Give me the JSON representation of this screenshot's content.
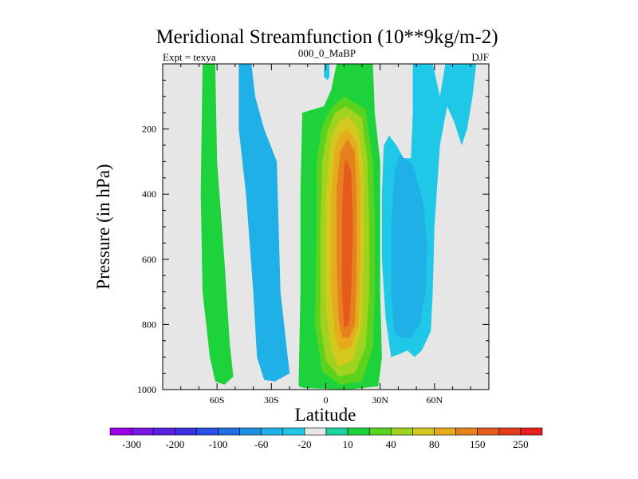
{
  "chart_data": {
    "type": "contour",
    "title": "Meridional Streamfunction (10**9kg/m-2)",
    "left_label": "Expt = texya",
    "center_label": "000_0_MaBP",
    "right_label": "DJF",
    "xlabel": "Latitude",
    "ylabel": "Pressure (in hPa)",
    "xlim": [
      -90,
      90
    ],
    "ylim": [
      1000,
      0
    ],
    "y_reversed": true,
    "xticks": [
      {
        "value": -60,
        "label": "60S"
      },
      {
        "value": -30,
        "label": "30S"
      },
      {
        "value": 0,
        "label": "0"
      },
      {
        "value": 30,
        "label": "30N"
      },
      {
        "value": 60,
        "label": "60N"
      }
    ],
    "yticks": [
      {
        "value": 200,
        "label": "200"
      },
      {
        "value": 400,
        "label": "400"
      },
      {
        "value": 600,
        "label": "600"
      },
      {
        "value": 800,
        "label": "800"
      },
      {
        "value": 1000,
        "label": "1000"
      }
    ],
    "colorbar": {
      "colors": [
        "#9b00e6",
        "#7a17e6",
        "#5a1fe0",
        "#3a2fe0",
        "#2a4fe6",
        "#1e6fe6",
        "#1e8fe6",
        "#1eb0e6",
        "#1ec8e6",
        "#e6e6e6",
        "#1ed2a0",
        "#1ed23c",
        "#5ad21e",
        "#a0d21e",
        "#d2c81e",
        "#e6aa1e",
        "#e6821e",
        "#e65a1e",
        "#e63c1e",
        "#e61e1e"
      ],
      "boundary_labels": [
        {
          "after": 1,
          "label": "-300"
        },
        {
          "after": 3,
          "label": "-200"
        },
        {
          "after": 5,
          "label": "-100"
        },
        {
          "after": 7,
          "label": "-60"
        },
        {
          "after": 9,
          "label": "-20"
        },
        {
          "after": 11,
          "label": "10"
        },
        {
          "after": 13,
          "label": "40"
        },
        {
          "after": 15,
          "label": "80"
        },
        {
          "after": 17,
          "label": "150"
        },
        {
          "after": 19,
          "label": "250"
        }
      ]
    },
    "background_color": "#e6e6e6",
    "cells": [
      {
        "name": "cell-left-positive",
        "color": "#1ed23c",
        "points": [
          [
            -68,
            0
          ],
          [
            -61,
            0
          ],
          [
            -60,
            300
          ],
          [
            -56,
            600
          ],
          [
            -53,
            860
          ],
          [
            -51,
            960
          ],
          [
            -56,
            985
          ],
          [
            -61,
            975
          ],
          [
            -64,
            900
          ],
          [
            -68,
            700
          ],
          [
            -69,
            400
          ]
        ]
      },
      {
        "name": "cell-left-negative",
        "color": "#1eb0e6",
        "points": [
          [
            -48,
            0
          ],
          [
            -41,
            0
          ],
          [
            -39,
            100
          ],
          [
            -34,
            200
          ],
          [
            -27,
            300
          ],
          [
            -26,
            500
          ],
          [
            -25,
            700
          ],
          [
            -22,
            850
          ],
          [
            -20,
            950
          ],
          [
            -28,
            975
          ],
          [
            -34,
            970
          ],
          [
            -38,
            900
          ],
          [
            -40,
            700
          ],
          [
            -44,
            400
          ],
          [
            -48,
            200
          ]
        ]
      },
      {
        "name": "cell-main-10",
        "color": "#1ed23c",
        "points": [
          [
            6,
            0
          ],
          [
            26,
            0
          ],
          [
            27,
            150
          ],
          [
            30,
            300
          ],
          [
            30,
            500
          ],
          [
            30,
            700
          ],
          [
            31,
            900
          ],
          [
            29,
            990
          ],
          [
            12,
            1000
          ],
          [
            -12,
            995
          ],
          [
            -15,
            990
          ],
          [
            -14,
            700
          ],
          [
            -14,
            400
          ],
          [
            -13,
            150
          ],
          [
            -1,
            130
          ],
          [
            3,
            80
          ]
        ]
      },
      {
        "name": "cell-main-40",
        "color": "#5ad21e",
        "points": [
          [
            10,
            100
          ],
          [
            22,
            140
          ],
          [
            26,
            300
          ],
          [
            27,
            500
          ],
          [
            27,
            700
          ],
          [
            26,
            870
          ],
          [
            20,
            975
          ],
          [
            8,
            985
          ],
          [
            -2,
            945
          ],
          [
            -6,
            800
          ],
          [
            -5,
            500
          ],
          [
            -5,
            300
          ],
          [
            -2,
            190
          ],
          [
            3,
            135
          ]
        ]
      },
      {
        "name": "cell-main-80",
        "color": "#a0d21e",
        "points": [
          [
            11,
            130
          ],
          [
            20,
            165
          ],
          [
            23,
            300
          ],
          [
            24,
            500
          ],
          [
            24,
            700
          ],
          [
            22,
            870
          ],
          [
            16,
            950
          ],
          [
            7,
            960
          ],
          [
            0,
            910
          ],
          [
            -3,
            800
          ],
          [
            -3,
            500
          ],
          [
            -2,
            300
          ],
          [
            1,
            205
          ],
          [
            5,
            150
          ]
        ]
      },
      {
        "name": "cell-main-150a",
        "color": "#d2c81e",
        "points": [
          [
            12,
            160
          ],
          [
            18,
            200
          ],
          [
            21,
            320
          ],
          [
            21,
            550
          ],
          [
            20,
            800
          ],
          [
            15,
            910
          ],
          [
            7,
            930
          ],
          [
            3,
            880
          ],
          [
            0,
            750
          ],
          [
            0,
            400
          ],
          [
            3,
            230
          ],
          [
            7,
            180
          ]
        ]
      },
      {
        "name": "cell-main-150b",
        "color": "#e6aa1e",
        "points": [
          [
            12,
            200
          ],
          [
            17,
            240
          ],
          [
            19,
            360
          ],
          [
            19,
            600
          ],
          [
            18,
            800
          ],
          [
            14,
            870
          ],
          [
            8,
            880
          ],
          [
            5,
            830
          ],
          [
            3,
            700
          ],
          [
            3,
            400
          ],
          [
            5,
            260
          ],
          [
            8,
            215
          ]
        ]
      },
      {
        "name": "cell-main-250a",
        "color": "#e6821e",
        "points": [
          [
            12,
            230
          ],
          [
            16,
            270
          ],
          [
            17,
            400
          ],
          [
            17,
            650
          ],
          [
            16,
            800
          ],
          [
            13,
            840
          ],
          [
            9,
            840
          ],
          [
            7,
            780
          ],
          [
            6,
            600
          ],
          [
            6,
            380
          ],
          [
            8,
            270
          ]
        ]
      },
      {
        "name": "cell-main-250b",
        "color": "#e65a1e",
        "points": [
          [
            11,
            290
          ],
          [
            14,
            330
          ],
          [
            15,
            500
          ],
          [
            14,
            700
          ],
          [
            13,
            800
          ],
          [
            10,
            810
          ],
          [
            9,
            700
          ],
          [
            9,
            450
          ],
          [
            10,
            320
          ]
        ]
      },
      {
        "name": "cell-right-cyan",
        "color": "#1ec8e6",
        "points": [
          [
            48,
            0
          ],
          [
            59,
            0
          ],
          [
            63,
            100
          ],
          [
            66,
            0
          ],
          [
            83,
            0
          ],
          [
            81,
            100
          ],
          [
            78,
            200
          ],
          [
            75,
            250
          ],
          [
            71,
            180
          ],
          [
            67,
            130
          ],
          [
            63,
            250
          ],
          [
            60,
            500
          ],
          [
            59,
            700
          ],
          [
            58,
            820
          ],
          [
            53,
            880
          ],
          [
            49,
            900
          ],
          [
            45,
            880
          ],
          [
            41,
            890
          ],
          [
            36,
            900
          ],
          [
            33,
            780
          ],
          [
            31,
            600
          ],
          [
            31,
            400
          ],
          [
            32,
            250
          ],
          [
            35,
            220
          ],
          [
            39,
            250
          ],
          [
            43,
            290
          ],
          [
            47,
            290
          ],
          [
            48,
            150
          ]
        ]
      },
      {
        "name": "cell-right-blue",
        "color": "#1eb0e6",
        "points": [
          [
            41,
            280
          ],
          [
            48,
            310
          ],
          [
            54,
            430
          ],
          [
            56,
            560
          ],
          [
            55,
            700
          ],
          [
            52,
            800
          ],
          [
            47,
            840
          ],
          [
            42,
            840
          ],
          [
            38,
            830
          ],
          [
            36,
            700
          ],
          [
            36,
            500
          ],
          [
            38,
            330
          ]
        ]
      },
      {
        "name": "cell-small-cyan",
        "color": "#1ec8e6",
        "points": [
          [
            -1,
            0
          ],
          [
            2,
            0
          ],
          [
            2,
            40
          ],
          [
            1,
            50
          ],
          [
            -1,
            40
          ]
        ]
      }
    ]
  }
}
